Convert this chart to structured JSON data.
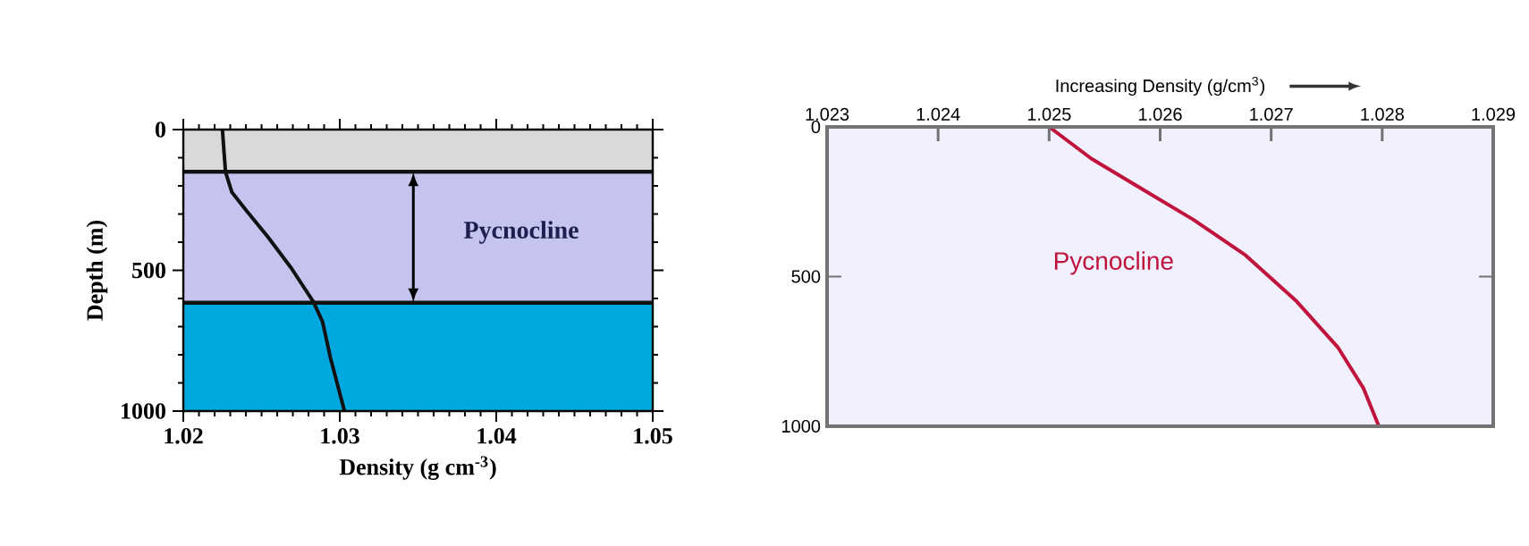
{
  "chart_data": [
    {
      "type": "line",
      "xlabel": "Density (g cm$^{-3}$)",
      "ylabel": "Depth (m)",
      "xlim": [
        1.02,
        1.05
      ],
      "ylim": [
        1000,
        0
      ],
      "xticks": [
        1.02,
        1.03,
        1.04,
        1.05
      ],
      "yticks": [
        0,
        500,
        1000
      ],
      "marker": "none",
      "line_style": "solid",
      "series": [
        {
          "color": "#111111",
          "x": [
            1.0225,
            1.0226,
            1.0227,
            1.0231,
            1.024,
            1.0254,
            1.0269,
            1.0283,
            1.0289,
            1.0294,
            1.0303
          ],
          "values": [
            0,
            79,
            151,
            222,
            286,
            381,
            492,
            611,
            683,
            810,
            1000
          ]
        }
      ],
      "bands": [
        {
          "axis": "y",
          "from": 0,
          "to": 150,
          "color": "#d9d9d9"
        },
        {
          "axis": "y",
          "from": 150,
          "to": 615,
          "color": "#c4c4ee"
        },
        {
          "axis": "y",
          "from": 615,
          "to": 1000,
          "color": "#00a8e0"
        }
      ],
      "ref_lines": [
        {
          "axis": "y",
          "value": 150,
          "color": "#111111"
        },
        {
          "axis": "y",
          "value": 615,
          "color": "#111111"
        }
      ],
      "annotations": [
        "Pycnocline"
      ]
    },
    {
      "type": "line",
      "xlabel": "Increasing Density (g/cm$^{3}$)",
      "xlim": [
        1.023,
        1.029
      ],
      "ylim": [
        1000,
        0
      ],
      "xticks": [
        1.023,
        1.024,
        1.025,
        1.026,
        1.027,
        1.028,
        1.029
      ],
      "yticks": [
        0,
        500,
        1000
      ],
      "marker": "none",
      "line_style": "solid",
      "series": [
        {
          "color": "#c0143c",
          "x": [
            1.025,
            1.02538,
            1.02584,
            1.0263,
            1.02677,
            1.02723,
            1.0276,
            1.02783,
            1.02797
          ],
          "values": [
            0,
            106,
            208,
            310,
            429,
            583,
            736,
            872,
            1000
          ]
        }
      ],
      "annotations": [
        "Pycnocline"
      ]
    }
  ]
}
